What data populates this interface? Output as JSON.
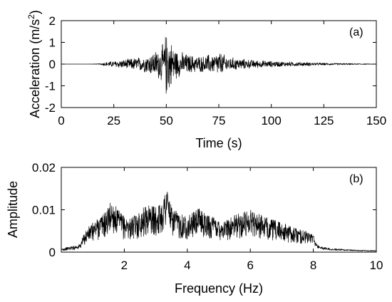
{
  "chart_data": [
    {
      "type": "line",
      "panel_label": "(a)",
      "xlabel": "Time (s)",
      "ylabel_main": "Acceleration (m/s",
      "ylabel_sup": "2",
      "ylabel_close": ")",
      "xlim": [
        0,
        150
      ],
      "ylim": [
        -2,
        2
      ],
      "xticks": [
        0,
        25,
        50,
        75,
        100,
        125,
        150
      ],
      "yticks": [
        -2,
        -1,
        0,
        1,
        2
      ],
      "grid": false,
      "color": "#000000",
      "series": [
        {
          "x": [
            0,
            10,
            18,
            20,
            22,
            25,
            28,
            30,
            33,
            35,
            38,
            40,
            42,
            44,
            46,
            47,
            48,
            49,
            50,
            50.5,
            51,
            51.5,
            52,
            53,
            54,
            55,
            56,
            58,
            60,
            62,
            65,
            68,
            70,
            72,
            75,
            78,
            80,
            85,
            90,
            95,
            100,
            105,
            110,
            115,
            120,
            125,
            130,
            135,
            140,
            145,
            150
          ],
          "y": [
            0,
            0,
            0.02,
            0.08,
            0.12,
            0.16,
            0.2,
            0.22,
            0.28,
            0.32,
            0.36,
            0.42,
            0.5,
            0.62,
            0.75,
            0.85,
            0.95,
            1.1,
            1.7,
            1.3,
            1.6,
            1.4,
            1.2,
            1.0,
            0.85,
            0.72,
            0.65,
            0.58,
            0.5,
            0.45,
            0.42,
            0.4,
            0.5,
            0.45,
            0.62,
            0.45,
            0.35,
            0.28,
            0.22,
            0.18,
            0.15,
            0.13,
            0.11,
            0.1,
            0.08,
            0.06,
            0.05,
            0.04,
            0.03,
            0.02,
            0.01
          ]
        }
      ]
    },
    {
      "type": "line",
      "panel_label": "(b)",
      "xlabel": "Frequency (Hz)",
      "ylabel": "Amplitude",
      "xlim": [
        0,
        10
      ],
      "ylim": [
        0,
        0.02
      ],
      "xticks": [
        2,
        4,
        6,
        8,
        10
      ],
      "yticks": [
        0,
        0.01,
        0.02
      ],
      "ytick_labels": [
        "0",
        "0.01",
        "0.02"
      ],
      "grid": false,
      "color": "#000000",
      "series": [
        {
          "x": [
            0,
            0.2,
            0.4,
            0.55,
            0.6,
            0.7,
            0.8,
            1.0,
            1.2,
            1.4,
            1.5,
            1.6,
            1.8,
            2.0,
            2.2,
            2.4,
            2.6,
            2.8,
            3.0,
            3.2,
            3.35,
            3.5,
            3.7,
            4.0,
            4.2,
            4.4,
            4.6,
            4.8,
            5.0,
            5.2,
            5.4,
            5.6,
            5.8,
            6.0,
            6.2,
            6.4,
            6.6,
            6.8,
            7.0,
            7.2,
            7.5,
            7.8,
            8.0,
            8.1,
            8.3,
            8.6,
            9.0,
            9.5,
            10.0
          ],
          "y": [
            0.0008,
            0.0012,
            0.0015,
            0.0018,
            0.002,
            0.004,
            0.0055,
            0.007,
            0.0085,
            0.0095,
            0.011,
            0.0125,
            0.01,
            0.0085,
            0.008,
            0.009,
            0.0105,
            0.0115,
            0.0105,
            0.012,
            0.0165,
            0.0105,
            0.0095,
            0.0085,
            0.0095,
            0.0105,
            0.009,
            0.0085,
            0.008,
            0.0075,
            0.0085,
            0.009,
            0.0095,
            0.0105,
            0.0095,
            0.0085,
            0.008,
            0.0075,
            0.007,
            0.0065,
            0.0055,
            0.005,
            0.0042,
            0.002,
            0.0012,
            0.0009,
            0.0007,
            0.0005,
            0.0004
          ]
        }
      ]
    }
  ]
}
